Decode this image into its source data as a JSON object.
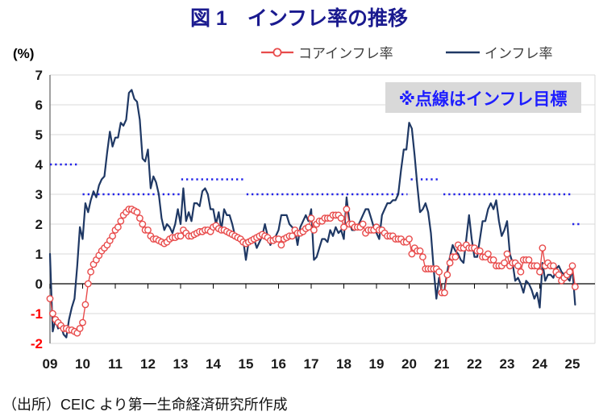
{
  "title": "図 1　インフレ率の推移",
  "y_axis_unit": "(%)",
  "legend": {
    "core": "コアインフレ率",
    "headline": "インフレ率"
  },
  "annotation": {
    "text": "※点線はインフレ目標"
  },
  "source": "（出所）CEIC より第一生命経済研究所作成",
  "colors": {
    "title": "#1a1a8f",
    "headline_line": "#1f3864",
    "core_line": "#e84b4b",
    "target_dots": "#2323e8",
    "annotation_text": "#1e1eff",
    "annotation_bg": "#d9d9d9",
    "grid": "#d9d9d9",
    "axis_gray": "#808080",
    "zero_axis": "#000000",
    "negative_label": "#ff0000",
    "positive_label": "#1a1a1a"
  },
  "chart_data": {
    "type": "line",
    "title": "図 1　インフレ率の推移",
    "ylabel": "(%)",
    "ylim": [
      -2,
      7
    ],
    "y_ticks": [
      7,
      6,
      5,
      4,
      3,
      2,
      1,
      0,
      -1,
      -2
    ],
    "x_start_year": 2009,
    "x_frequency": "monthly",
    "x_tick_labels": [
      "09",
      "10",
      "11",
      "12",
      "13",
      "14",
      "15",
      "16",
      "17",
      "18",
      "19",
      "20",
      "21",
      "22",
      "23",
      "24",
      "25"
    ],
    "grid": true,
    "legend_position": "top",
    "series": [
      {
        "name": "インフレ率",
        "color": "#1f3864",
        "marker": "none",
        "values": [
          1.0,
          -1.6,
          -1.2,
          -1.5,
          -1.4,
          -1.7,
          -1.8,
          -1.2,
          -0.8,
          -0.5,
          0.6,
          1.9,
          1.5,
          2.7,
          2.4,
          2.8,
          3.1,
          2.9,
          3.3,
          3.5,
          3.6,
          4.4,
          5.1,
          4.6,
          4.9,
          4.9,
          5.4,
          5.3,
          5.5,
          6.4,
          6.5,
          6.2,
          6.1,
          5.5,
          4.2,
          4.1,
          4.5,
          3.2,
          3.6,
          3.4,
          3.0,
          2.2,
          1.8,
          2.0,
          1.9,
          1.7,
          2.0,
          2.5,
          2.0,
          3.2,
          2.1,
          2.4,
          2.1,
          2.7,
          2.7,
          2.6,
          3.1,
          3.2,
          3.0,
          2.5,
          2.5,
          2.0,
          2.4,
          1.8,
          2.5,
          2.3,
          2.3,
          2.0,
          1.6,
          1.6,
          1.4,
          1.5,
          0.8,
          1.4,
          1.4,
          1.5,
          1.2,
          1.4,
          1.6,
          2.0,
          1.6,
          1.3,
          1.5,
          1.6,
          1.8,
          2.3,
          2.3,
          2.3,
          2.0,
          1.9,
          1.8,
          1.3,
          1.9,
          2.1,
          2.3,
          2.1,
          2.5,
          0.8,
          0.9,
          1.2,
          1.5,
          1.5,
          1.4,
          1.8,
          1.6,
          1.9,
          1.7,
          1.8,
          1.5,
          2.9,
          2.1,
          1.8,
          1.8,
          1.9,
          2.1,
          2.3,
          2.5,
          2.5,
          2.2,
          1.9,
          1.7,
          1.5,
          2.3,
          2.5,
          2.7,
          2.7,
          2.8,
          2.8,
          3.0,
          3.8,
          4.5,
          4.5,
          5.4,
          5.2,
          4.3,
          3.3,
          2.4,
          2.5,
          2.7,
          2.4,
          1.7,
          0.5,
          -0.5,
          0.2,
          -0.3,
          -0.2,
          0.4,
          0.9,
          1.3,
          1.1,
          1.0,
          0.8,
          0.7,
          1.5,
          2.3,
          1.5,
          0.9,
          0.9,
          1.5,
          2.1,
          2.1,
          2.5,
          2.7,
          2.5,
          2.8,
          2.1,
          1.6,
          1.8,
          2.1,
          1.0,
          0.7,
          0.1,
          0.2,
          0.0,
          -0.3,
          0.1,
          0.0,
          -0.2,
          -0.5,
          -0.3,
          -0.8,
          0.7,
          0.1,
          0.3,
          0.3,
          0.2,
          0.5,
          0.6,
          0.4,
          0.3,
          0.2,
          0.1,
          0.5,
          -0.7
        ]
      },
      {
        "name": "コアインフレ率",
        "color": "#e84b4b",
        "marker": "circle",
        "values": [
          -0.5,
          -1.0,
          -1.2,
          -1.3,
          -1.4,
          -1.5,
          -1.5,
          -1.55,
          -1.55,
          -1.6,
          -1.65,
          -1.5,
          -1.3,
          -0.7,
          0.0,
          0.4,
          0.65,
          0.8,
          0.95,
          1.1,
          1.2,
          1.3,
          1.45,
          1.6,
          1.8,
          1.9,
          2.1,
          2.3,
          2.4,
          2.5,
          2.5,
          2.45,
          2.4,
          2.2,
          2.0,
          1.8,
          1.8,
          1.6,
          1.5,
          1.5,
          1.45,
          1.4,
          1.35,
          1.4,
          1.5,
          1.55,
          1.55,
          1.6,
          1.6,
          1.8,
          1.7,
          1.6,
          1.6,
          1.65,
          1.7,
          1.75,
          1.75,
          1.8,
          1.8,
          1.75,
          1.9,
          1.95,
          1.85,
          1.8,
          1.8,
          1.75,
          1.7,
          1.65,
          1.6,
          1.55,
          1.5,
          1.4,
          1.35,
          1.4,
          1.45,
          1.5,
          1.55,
          1.6,
          1.65,
          1.6,
          1.55,
          1.45,
          1.45,
          1.5,
          1.5,
          1.3,
          1.5,
          1.55,
          1.6,
          1.6,
          1.8,
          1.7,
          1.7,
          1.75,
          1.85,
          1.9,
          2.2,
          1.8,
          2.0,
          2.1,
          2.1,
          2.2,
          2.2,
          2.2,
          2.3,
          2.3,
          2.3,
          2.2,
          1.9,
          2.5,
          2.0,
          2.0,
          1.9,
          1.9,
          1.9,
          2.0,
          1.7,
          1.8,
          1.8,
          1.8,
          1.9,
          1.8,
          1.8,
          1.7,
          1.6,
          1.6,
          1.6,
          1.5,
          1.5,
          1.5,
          1.4,
          1.4,
          1.5,
          1.0,
          1.2,
          1.1,
          1.1,
          0.9,
          0.5,
          0.5,
          0.5,
          0.5,
          0.5,
          0.4,
          -0.3,
          -0.3,
          0.3,
          0.7,
          0.9,
          0.9,
          1.3,
          1.2,
          1.2,
          1.3,
          1.2,
          1.2,
          1.2,
          1.1,
          1.1,
          0.9,
          0.9,
          1.0,
          0.8,
          0.8,
          0.6,
          0.6,
          0.6,
          0.7,
          1.0,
          0.6,
          0.7,
          0.7,
          0.6,
          0.4,
          0.8,
          0.8,
          0.8,
          0.6,
          0.6,
          0.6,
          0.4,
          1.2,
          0.6,
          0.7,
          0.6,
          0.6,
          0.4,
          0.3,
          0.1,
          0.2,
          0.3,
          0.4,
          0.6,
          -0.1
        ]
      }
    ],
    "target_segments": [
      {
        "level": 4,
        "from": 2009.0,
        "to": 2009.88
      },
      {
        "level": 3,
        "from": 2010.0,
        "to": 2012.98
      },
      {
        "level": 3.5,
        "from": 2013.02,
        "to": 2014.95
      },
      {
        "level": 3,
        "from": 2015.02,
        "to": 2019.95
      },
      {
        "level": 3.5,
        "from": 2020.05,
        "to": 2020.92
      },
      {
        "level": 3,
        "from": 2021.05,
        "to": 2024.97
      },
      {
        "level": 2,
        "from": 2025.0,
        "to": 2025.22
      }
    ]
  }
}
